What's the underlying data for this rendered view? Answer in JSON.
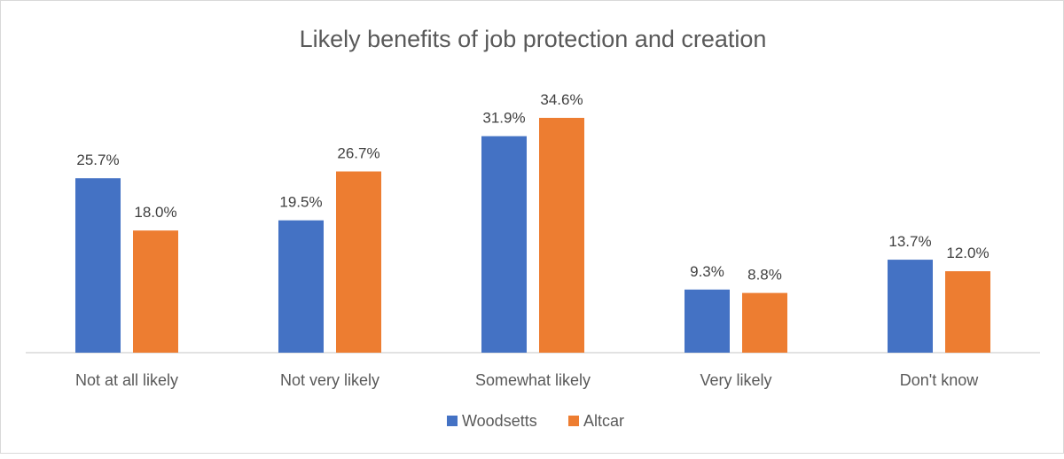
{
  "chart_data": {
    "type": "bar",
    "title": "Likely benefits of  job protection and creation",
    "xlabel": "",
    "ylabel": "",
    "ylim": [
      0,
      34.6
    ],
    "grid": false,
    "legend_position": "bottom",
    "categories": [
      "Not at all likely",
      "Not very likely",
      "Somewhat likely",
      "Very likely",
      "Don't know"
    ],
    "series": [
      {
        "name": "Woodsetts",
        "color": "#4472c4",
        "values": [
          25.7,
          19.5,
          31.9,
          9.3,
          13.7
        ],
        "labels": [
          "25.7%",
          "19.5%",
          "31.9%",
          "9.3%",
          "13.7%"
        ]
      },
      {
        "name": "Altcar",
        "color": "#ed7d31",
        "values": [
          18.0,
          26.7,
          34.6,
          8.8,
          12.0
        ],
        "labels": [
          "18.0%",
          "26.7%",
          "34.6%",
          "8.8%",
          "12.0%"
        ]
      }
    ]
  }
}
